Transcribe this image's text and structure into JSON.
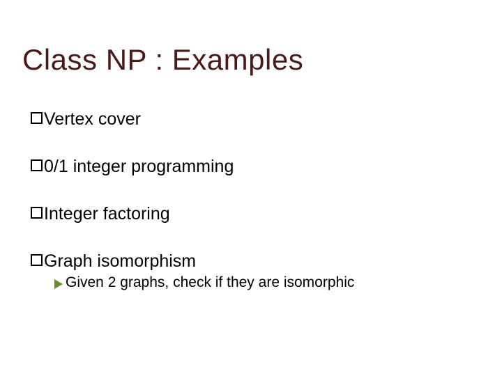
{
  "title": "Class NP :  Examples",
  "items": [
    {
      "text": "Vertex cover"
    },
    {
      "text": "0/1 integer programming"
    },
    {
      "text": "Integer factoring"
    },
    {
      "text": "Graph isomorphism"
    }
  ],
  "subitem": {
    "text": "Given 2 graphs, check if they are isomorphic"
  },
  "colors": {
    "title": "#4a1a1a",
    "body": "#000000",
    "arrow": "#6a8a3a",
    "background": "#ffffff"
  },
  "fonts": {
    "title_size": 42,
    "bullet_size": 25,
    "sub_size": 21
  }
}
